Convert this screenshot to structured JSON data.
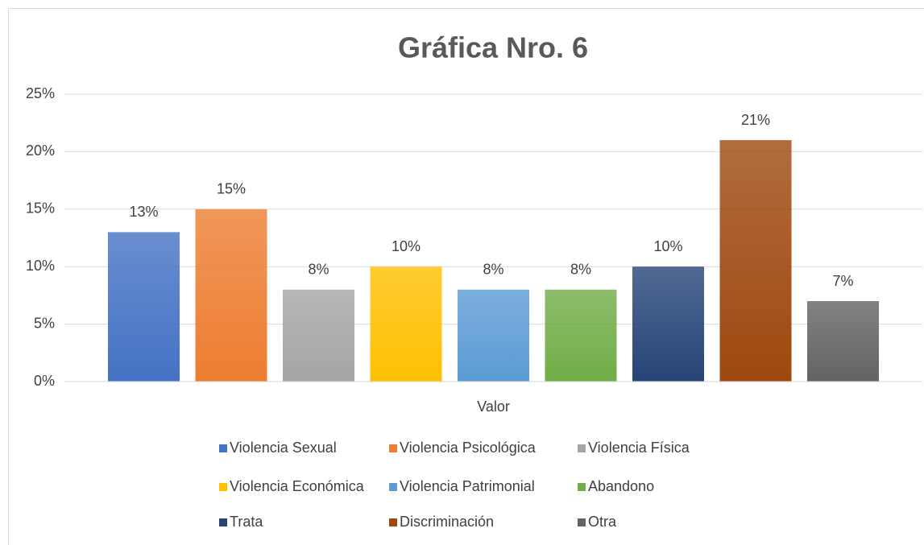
{
  "chart_data": {
    "type": "bar",
    "title": "Gráfica Nro. 6",
    "categories": [
      "Valor"
    ],
    "series": [
      {
        "name": "Violencia Sexual",
        "color": "#4472c4",
        "values": [
          13
        ],
        "value_labels": [
          "13%"
        ]
      },
      {
        "name": "Violencia Psicológica",
        "color": "#ed7d31",
        "values": [
          15
        ],
        "value_labels": [
          "15%"
        ]
      },
      {
        "name": "Violencia Física",
        "color": "#a5a5a5",
        "values": [
          8
        ],
        "value_labels": [
          "8%"
        ]
      },
      {
        "name": "Violencia Económica",
        "color": "#ffc000",
        "values": [
          10
        ],
        "value_labels": [
          "10%"
        ]
      },
      {
        "name": "Violencia Patrimonial",
        "color": "#5b9bd5",
        "values": [
          8
        ],
        "value_labels": [
          "8%"
        ]
      },
      {
        "name": "Abandono",
        "color": "#70ad47",
        "values": [
          8
        ],
        "value_labels": [
          "8%"
        ]
      },
      {
        "name": "Trata",
        "color": "#264478",
        "values": [
          10
        ],
        "value_labels": [
          "10%"
        ]
      },
      {
        "name": "Discriminación",
        "color": "#9e480e",
        "values": [
          21
        ],
        "value_labels": [
          "21%"
        ]
      },
      {
        "name": "Otra",
        "color": "#636363",
        "values": [
          7
        ],
        "value_labels": [
          "7%"
        ]
      }
    ],
    "ylim": [
      0,
      25
    ],
    "yticks": [
      {
        "value": 0,
        "label": "0%"
      },
      {
        "value": 5,
        "label": "5%"
      },
      {
        "value": 10,
        "label": "10%"
      },
      {
        "value": 15,
        "label": "15%"
      },
      {
        "value": 20,
        "label": "20%"
      },
      {
        "value": 25,
        "label": "25%"
      }
    ],
    "grid": true,
    "legend": "bottom"
  }
}
